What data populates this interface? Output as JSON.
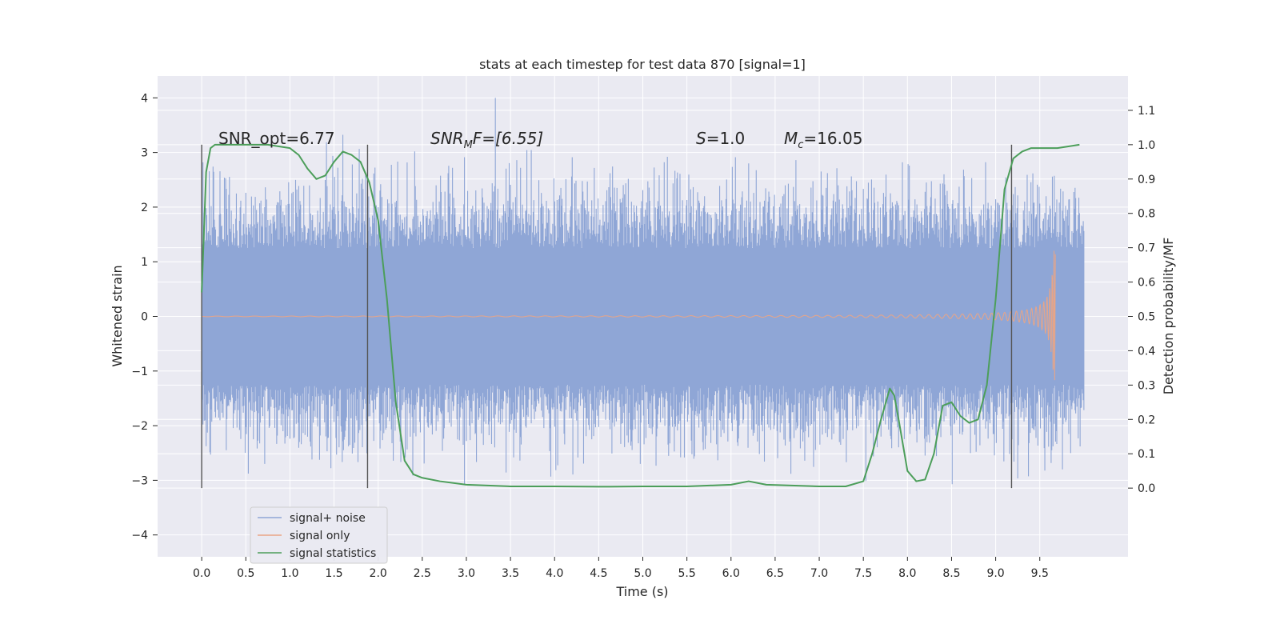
{
  "chart_data": {
    "type": "line",
    "title": "stats at each timestep for test data 870 [signal=1]",
    "xlabel": "Time (s)",
    "ylabel": "Whitened strain",
    "ylabel_right": "Detection probability/MF",
    "xlim": [
      -0.5,
      10.5
    ],
    "ylim": [
      -4.4,
      4.4
    ],
    "ylim_right": [
      -0.2,
      1.2
    ],
    "x_ticks": [
      "0.0",
      "0.5",
      "1.0",
      "1.5",
      "2.0",
      "2.5",
      "3.0",
      "3.5",
      "4.0",
      "4.5",
      "5.0",
      "5.5",
      "6.0",
      "6.5",
      "7.0",
      "7.5",
      "8.0",
      "8.5",
      "9.0",
      "9.5"
    ],
    "y_ticks": [
      "4",
      "3",
      "2",
      "1",
      "0",
      "−1",
      "−2",
      "−3",
      "−4"
    ],
    "y_ticks_right": [
      "1.1",
      "1.0",
      "0.9",
      "0.8",
      "0.7",
      "0.6",
      "0.5",
      "0.4",
      "0.3",
      "0.2",
      "0.1",
      "0.0"
    ],
    "grid": true,
    "legend_position": "bottom-left",
    "annotations": {
      "snr_opt": "SNR_opt=6.77",
      "snr_mf_base": "SNR",
      "snr_mf_sub": "M",
      "snr_mf_rest": "F=[6.55]",
      "s_var": "S",
      "s_rest": "=1.0",
      "mc_var": "M",
      "mc_sub": "c",
      "mc_rest": "=16.05"
    },
    "vertical_lines_x": [
      0.0,
      1.88,
      9.18
    ],
    "series": [
      {
        "name": "signal+ noise",
        "color": "#8fa6d6",
        "x_range": [
          0.0,
          10.0
        ],
        "envelope_y_range": [
          -3.4,
          4.0
        ],
        "typical_y_range": [
          -2.2,
          2.2
        ]
      },
      {
        "name": "signal only",
        "color": "#e9a586",
        "x_range": [
          0.0,
          9.68
        ],
        "peak_amplitude": 1.2
      },
      {
        "name": "signal statistics",
        "color": "#4c9e5a",
        "x": [
          0.0,
          0.05,
          0.1,
          0.15,
          0.25,
          0.5,
          0.75,
          1.0,
          1.1,
          1.2,
          1.3,
          1.4,
          1.5,
          1.6,
          1.7,
          1.8,
          1.9,
          2.0,
          2.1,
          2.2,
          2.3,
          2.4,
          2.5,
          2.7,
          3.0,
          3.5,
          4.0,
          4.5,
          5.0,
          5.5,
          6.0,
          6.2,
          6.4,
          7.0,
          7.3,
          7.5,
          7.6,
          7.7,
          7.8,
          7.85,
          7.9,
          8.0,
          8.1,
          8.2,
          8.3,
          8.4,
          8.5,
          8.6,
          8.7,
          8.8,
          8.9,
          9.0,
          9.1,
          9.2,
          9.3,
          9.4,
          9.5,
          9.7,
          9.95
        ],
        "y": [
          0.57,
          0.92,
          0.99,
          1.0,
          1.0,
          1.0,
          1.0,
          0.99,
          0.97,
          0.93,
          0.9,
          0.91,
          0.95,
          0.98,
          0.97,
          0.95,
          0.89,
          0.78,
          0.55,
          0.25,
          0.08,
          0.04,
          0.03,
          0.02,
          0.01,
          0.005,
          0.005,
          0.004,
          0.005,
          0.005,
          0.01,
          0.02,
          0.01,
          0.005,
          0.005,
          0.02,
          0.1,
          0.2,
          0.29,
          0.27,
          0.2,
          0.05,
          0.02,
          0.025,
          0.1,
          0.24,
          0.25,
          0.21,
          0.19,
          0.2,
          0.3,
          0.55,
          0.87,
          0.96,
          0.98,
          0.99,
          0.99,
          0.99,
          1.0
        ]
      }
    ]
  }
}
